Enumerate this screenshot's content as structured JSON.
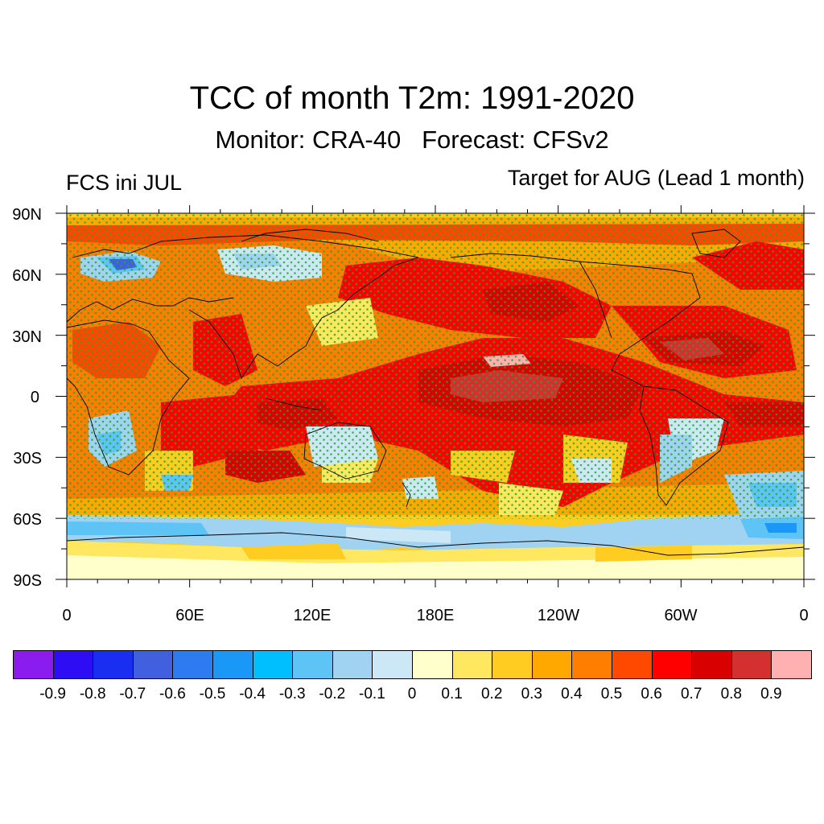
{
  "header": {
    "title": "TCC of month T2m: 1991-2020",
    "subtitle": "Monitor: CRA-40   Forecast: CFSv2",
    "left_label": "FCS ini JUL",
    "right_label": "Target for AUG (Lead 1 month)"
  },
  "map": {
    "projection": "cylindrical equidistant",
    "lon_ticks": [
      "0",
      "60E",
      "120E",
      "180E",
      "120W",
      "60W",
      "0"
    ],
    "lat_ticks": [
      "90N",
      "60N",
      "30N",
      "0",
      "30S",
      "60S",
      "90S"
    ],
    "stipple_color": "#22aa22",
    "coastline_color": "#000000"
  },
  "colorbar": {
    "colors": [
      "#8a1cf0",
      "#2e0df5",
      "#1a2ef2",
      "#4060e0",
      "#2e7af0",
      "#1a98f7",
      "#00bfff",
      "#5ec3f5",
      "#a0d2f2",
      "#cce8f7",
      "#ffffcc",
      "#ffe860",
      "#ffcc22",
      "#ffa800",
      "#ff7e00",
      "#ff4800",
      "#ff0000",
      "#d80000",
      "#d43030",
      "#ffb0b0"
    ],
    "labels": [
      "-0.9",
      "-0.8",
      "-0.7",
      "-0.6",
      "-0.5",
      "-0.4",
      "-0.3",
      "-0.2",
      "-0.1",
      "0",
      "0.1",
      "0.2",
      "0.3",
      "0.4",
      "0.5",
      "0.6",
      "0.7",
      "0.8",
      "0.9"
    ]
  }
}
